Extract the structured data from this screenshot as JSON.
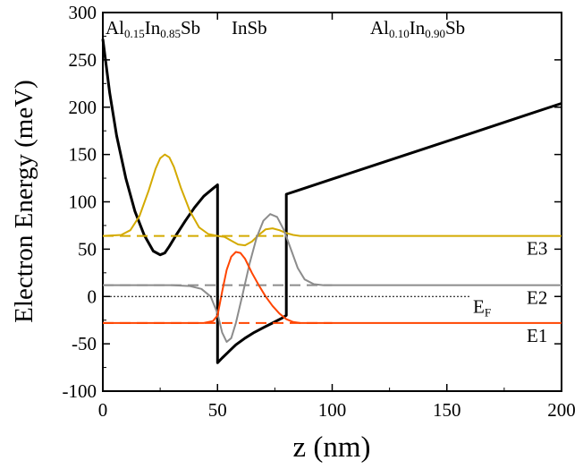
{
  "chart_data": {
    "type": "line",
    "xlabel": "z (nm)",
    "ylabel": "Electron Energy (meV)",
    "xlim": [
      0,
      200
    ],
    "ylim": [
      -100,
      300
    ],
    "x_ticks": [
      0,
      50,
      100,
      150,
      200
    ],
    "y_ticks": [
      -100,
      -50,
      0,
      50,
      100,
      150,
      200,
      250,
      300
    ],
    "x_tick_labels": [
      "0",
      "50",
      "100",
      "150",
      "200"
    ],
    "y_tick_labels": [
      "-100",
      "-50",
      "0",
      "50",
      "100",
      "150",
      "200",
      "250",
      "300"
    ],
    "grid": false,
    "annotations": [
      {
        "base": "Al",
        "sub1": "0.15",
        "mid": "In",
        "sub2": "0.85",
        "tail": "Sb"
      },
      {
        "text": "InSb"
      },
      {
        "base": "Al",
        "sub1": "0.10",
        "mid": "In",
        "sub2": "0.90",
        "tail": "Sb"
      }
    ],
    "level_labels": [
      {
        "text": "E3",
        "color": "#d4aa00",
        "y": 64
      },
      {
        "text": "E2",
        "color": "#8c8c8c",
        "y": 12
      },
      {
        "text": "E1",
        "color": "#ff4500",
        "y": -28
      }
    ],
    "fermi_label": {
      "base": "E",
      "sub": "F",
      "y": 0
    },
    "series": [
      {
        "role": "conduction-band",
        "color": "#000000",
        "style": "solid",
        "x": [
          0,
          3,
          6,
          10,
          14,
          18,
          22,
          25,
          27,
          29,
          32,
          36,
          40,
          44,
          48,
          50,
          50,
          52,
          55,
          58,
          62,
          66,
          70,
          74,
          78,
          80,
          80,
          85,
          100,
          120,
          140,
          160,
          180,
          200
        ],
        "y": [
          272,
          215,
          170,
          125,
          90,
          65,
          48,
          44,
          46,
          53,
          65,
          80,
          94,
          106,
          114,
          118,
          -70,
          -65,
          -58,
          -51,
          -44,
          -38,
          -33,
          -28,
          -23,
          -20,
          108,
          112,
          124,
          140,
          156,
          172,
          188,
          204
        ]
      },
      {
        "role": "E3-wavefunction",
        "color": "#d4aa00",
        "style": "solid",
        "x": [
          0,
          8,
          12,
          16,
          20,
          23,
          25,
          27,
          29,
          31,
          34,
          38,
          42,
          46,
          50,
          53,
          56,
          59,
          62,
          65,
          68,
          71,
          74,
          77,
          80,
          83,
          86,
          90,
          95,
          100,
          200
        ],
        "y": [
          64,
          65,
          70,
          85,
          112,
          135,
          146,
          150,
          147,
          137,
          115,
          90,
          73,
          66,
          64,
          63,
          59,
          55,
          54,
          58,
          65,
          71,
          72,
          70,
          67,
          65,
          64,
          64,
          64,
          64,
          64
        ]
      },
      {
        "role": "E3-level",
        "color": "#d4aa00",
        "style": "dashed",
        "x": [
          0,
          80
        ],
        "y": [
          64,
          64
        ]
      },
      {
        "role": "E2-wavefunction",
        "color": "#8c8c8c",
        "style": "solid",
        "x": [
          0,
          30,
          38,
          43,
          47,
          50,
          52,
          54,
          56,
          58,
          61,
          64,
          67,
          70,
          73,
          76,
          79,
          82,
          85,
          88,
          92,
          96,
          100,
          200
        ],
        "y": [
          12,
          12,
          11,
          8,
          0,
          -18,
          -38,
          -48,
          -44,
          -28,
          3,
          35,
          62,
          80,
          87,
          84,
          70,
          50,
          30,
          18,
          13,
          12,
          12,
          12
        ]
      },
      {
        "role": "E2-level",
        "color": "#8c8c8c",
        "style": "dashed",
        "x": [
          0,
          100
        ],
        "y": [
          12,
          12
        ]
      },
      {
        "role": "E1-wavefunction",
        "color": "#ff4500",
        "style": "solid",
        "x": [
          0,
          44,
          48,
          50,
          52,
          54,
          56,
          58,
          60,
          62,
          65,
          68,
          71,
          74,
          77,
          80,
          83,
          86,
          90,
          200
        ],
        "y": [
          -28,
          -28,
          -26,
          -20,
          5,
          28,
          42,
          47,
          46,
          40,
          25,
          12,
          0,
          -10,
          -18,
          -24,
          -27,
          -28,
          -28,
          -28
        ]
      },
      {
        "role": "E1-level",
        "color": "#ff4500",
        "style": "dashed",
        "x": [
          0,
          100
        ],
        "y": [
          -28,
          -28
        ]
      },
      {
        "role": "fermi-level",
        "color": "#000000",
        "style": "dotted",
        "x": [
          0,
          160
        ],
        "y": [
          0,
          0
        ]
      }
    ]
  }
}
